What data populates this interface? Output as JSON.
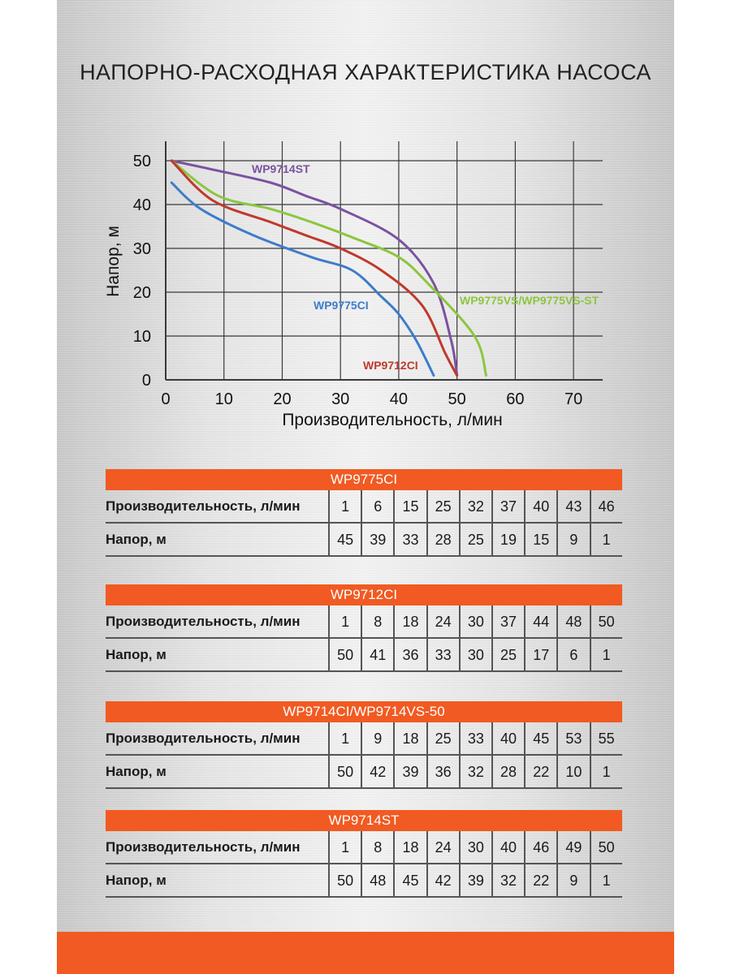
{
  "title": "НАПОРНО-РАСХОДНАЯ ХАРАКТЕРИСТИКА НАСОСА",
  "chart_data": {
    "type": "line",
    "xlabel": "Производительность, л/мин",
    "ylabel": "Напор, м",
    "xlim": [
      0,
      75
    ],
    "ylim": [
      0,
      50
    ],
    "xticks": [
      0,
      10,
      20,
      30,
      40,
      50,
      60,
      70
    ],
    "yticks": [
      0,
      10,
      20,
      30,
      40,
      50
    ],
    "grid": true,
    "series": [
      {
        "name": "WP9714ST",
        "color": "#7a52a0",
        "x": [
          1,
          8,
          18,
          24,
          30,
          40,
          46,
          49,
          50
        ],
        "y": [
          50,
          48,
          45,
          42,
          39,
          32,
          22,
          9,
          1
        ]
      },
      {
        "name": "WP9775VS/WP9775VS-ST",
        "color": "#8cc63f",
        "x": [
          1,
          9,
          18,
          25,
          33,
          40,
          45,
          53,
          55
        ],
        "y": [
          50,
          42,
          39,
          36,
          32,
          28,
          22,
          10,
          1
        ]
      },
      {
        "name": "WP9712CI",
        "color": "#c0392b",
        "x": [
          1,
          8,
          18,
          24,
          30,
          37,
          44,
          48,
          50
        ],
        "y": [
          50,
          41,
          36,
          33,
          30,
          25,
          17,
          6,
          1
        ]
      },
      {
        "name": "WP9775CI",
        "color": "#3d7cc9",
        "x": [
          1,
          6,
          15,
          25,
          32,
          37,
          40,
          43,
          46
        ],
        "y": [
          45,
          39,
          33,
          28,
          25,
          19,
          15,
          9,
          1
        ]
      }
    ]
  },
  "tables": [
    {
      "title": "WP9775CI",
      "row1_label": "Производительность, л/мин",
      "row2_label": "Напор, м",
      "flow": [
        "1",
        "6",
        "15",
        "25",
        "32",
        "37",
        "40",
        "43",
        "46"
      ],
      "head": [
        "45",
        "39",
        "33",
        "28",
        "25",
        "19",
        "15",
        "9",
        "1"
      ]
    },
    {
      "title": "WP9712CI",
      "row1_label": "Производительность, л/мин",
      "row2_label": "Напор, м",
      "flow": [
        "1",
        "8",
        "18",
        "24",
        "30",
        "37",
        "44",
        "48",
        "50"
      ],
      "head": [
        "50",
        "41",
        "36",
        "33",
        "30",
        "25",
        "17",
        "6",
        "1"
      ]
    },
    {
      "title": "WP9714CI/WP9714VS-50",
      "row1_label": "Производительность, л/мин",
      "row2_label": "Напор, м",
      "flow": [
        "1",
        "9",
        "18",
        "25",
        "33",
        "40",
        "45",
        "53",
        "55"
      ],
      "head": [
        "50",
        "42",
        "39",
        "36",
        "32",
        "28",
        "22",
        "10",
        "1"
      ]
    },
    {
      "title": "WP9714ST",
      "row1_label": "Производительность, л/мин",
      "row2_label": "Напор, м",
      "flow": [
        "1",
        "8",
        "18",
        "24",
        "30",
        "40",
        "46",
        "49",
        "50"
      ],
      "head": [
        "50",
        "48",
        "45",
        "42",
        "39",
        "32",
        "22",
        "9",
        "1"
      ]
    }
  ]
}
